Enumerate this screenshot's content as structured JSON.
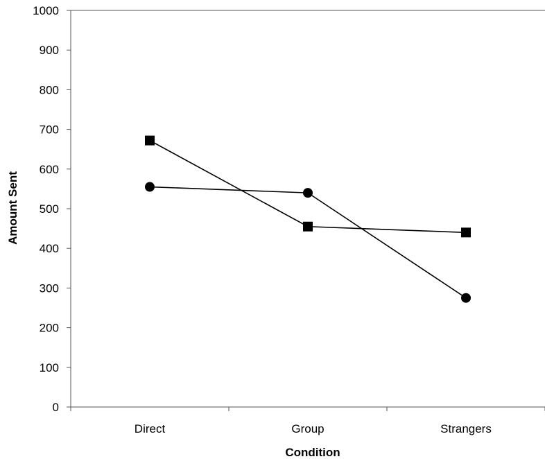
{
  "chart_data": {
    "type": "line",
    "title": "",
    "xlabel": "Condition",
    "ylabel": "Amount Sent",
    "categories": [
      "Direct",
      "Group",
      "Strangers"
    ],
    "ylim": [
      0,
      1000
    ],
    "yticks": [
      0,
      100,
      200,
      300,
      400,
      500,
      600,
      700,
      800,
      900,
      1000
    ],
    "grid": false,
    "legend": "none",
    "series": [
      {
        "marker": "square",
        "color": "#000000",
        "values": [
          672,
          455,
          440
        ]
      },
      {
        "marker": "circle",
        "color": "#000000",
        "values": [
          555,
          540,
          275
        ]
      }
    ]
  }
}
